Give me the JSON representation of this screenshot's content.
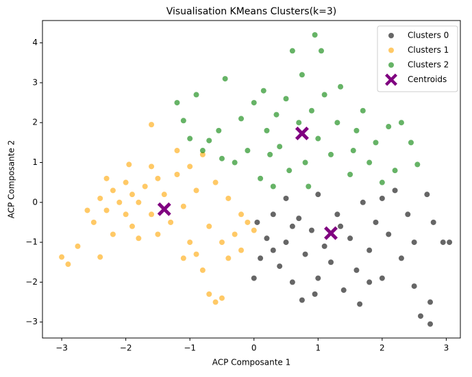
{
  "chart_data": {
    "type": "scatter",
    "title": "Visualisation KMeans Clusters(k=3)",
    "x_label": "ACP Composante 1",
    "y_label": "ACP Composante 2",
    "xlim": [
      -3.3,
      3.22
    ],
    "ylim": [
      -3.4,
      4.56
    ],
    "xticks": [
      {
        "value": -3,
        "label": "−3"
      },
      {
        "value": -2,
        "label": "−2"
      },
      {
        "value": -1,
        "label": "−1"
      },
      0,
      1,
      2,
      3
    ],
    "yticks": [
      {
        "value": -3,
        "label": "−3"
      },
      {
        "value": -2,
        "label": "−2"
      },
      {
        "value": -1,
        "label": "−1"
      },
      0,
      1,
      2,
      3,
      4
    ],
    "legend": "upper right",
    "series": [
      {
        "name": "Clusters 0",
        "color": "#000000",
        "alpha": 0.6,
        "marker": "o",
        "x": [
          0.0,
          0.05,
          0.1,
          0.2,
          0.3,
          0.4,
          0.5,
          0.5,
          0.6,
          0.7,
          0.75,
          0.8,
          0.9,
          0.95,
          1.0,
          1.1,
          1.2,
          1.3,
          1.4,
          1.5,
          1.6,
          1.65,
          1.7,
          1.8,
          1.9,
          2.0,
          2.1,
          2.2,
          2.3,
          2.4,
          2.5,
          2.5,
          2.6,
          2.7,
          2.75,
          2.75,
          2.8,
          2.95,
          3.05,
          1.35,
          0.3,
          0.6,
          1.0,
          2.0,
          1.8
        ],
        "y": [
          -1.9,
          -0.5,
          -1.4,
          -0.9,
          -0.3,
          -1.6,
          0.1,
          -1.0,
          -2.0,
          -0.4,
          -2.45,
          -1.3,
          -0.7,
          -2.3,
          0.2,
          -1.1,
          -1.5,
          -0.3,
          -2.2,
          -0.9,
          -1.7,
          -2.55,
          0.0,
          -1.2,
          -0.5,
          -1.9,
          -0.8,
          0.3,
          -1.4,
          -0.3,
          -2.1,
          -1.0,
          -2.85,
          0.2,
          -3.05,
          -2.5,
          -0.5,
          -1.0,
          -1.0,
          -0.6,
          -1.2,
          -0.6,
          -1.9,
          0.1,
          -2.0
        ]
      },
      {
        "name": "Clusters 1",
        "color": "#ffa500",
        "alpha": 0.6,
        "marker": "o",
        "x": [
          -3.0,
          -2.9,
          -2.75,
          -2.4,
          -2.5,
          -2.4,
          -2.3,
          -2.2,
          -2.1,
          -2.0,
          -2.0,
          -1.9,
          -1.9,
          -1.8,
          -1.8,
          -1.7,
          -1.6,
          -1.6,
          -1.5,
          -1.5,
          -1.4,
          -1.3,
          -1.2,
          -1.2,
          -1.1,
          -1.0,
          -1.0,
          -0.9,
          -0.9,
          -0.8,
          -0.8,
          -0.7,
          -0.7,
          -0.6,
          -0.6,
          -0.5,
          -0.5,
          -0.4,
          -0.4,
          -0.3,
          -0.2,
          -0.2,
          -0.1,
          0.0,
          -2.6,
          -2.2,
          -1.6,
          -2.3,
          -1.95,
          -1.1
        ],
        "y": [
          -1.37,
          -1.55,
          -1.1,
          -1.37,
          -0.5,
          0.1,
          -0.2,
          0.3,
          0.0,
          -0.3,
          0.5,
          0.2,
          -0.6,
          0.0,
          -0.9,
          0.4,
          -0.3,
          1.95,
          0.6,
          -0.8,
          0.2,
          -0.5,
          1.3,
          0.7,
          -0.1,
          -1.0,
          0.9,
          -1.3,
          0.3,
          -1.7,
          1.2,
          -0.6,
          -2.3,
          0.5,
          -2.5,
          -1.0,
          -2.4,
          0.1,
          -1.4,
          -0.8,
          -0.3,
          -1.2,
          -0.5,
          -0.7,
          -0.2,
          -0.8,
          0.9,
          0.6,
          0.95,
          -1.4
        ]
      },
      {
        "name": "Clusters 2",
        "color": "#008000",
        "alpha": 0.6,
        "marker": "o",
        "x": [
          -1.2,
          -1.1,
          -1.0,
          -0.9,
          -0.8,
          -0.7,
          -0.55,
          -0.5,
          -0.45,
          -0.3,
          -0.2,
          -0.1,
          0.0,
          0.1,
          0.15,
          0.2,
          0.3,
          0.35,
          0.4,
          0.5,
          0.55,
          0.6,
          0.7,
          0.75,
          0.8,
          0.85,
          0.9,
          0.95,
          1.0,
          1.05,
          1.1,
          1.2,
          1.3,
          1.35,
          1.5,
          1.6,
          1.7,
          1.8,
          1.9,
          2.0,
          2.1,
          2.2,
          2.3,
          2.45,
          2.55,
          0.25,
          1.55
        ],
        "y": [
          2.5,
          2.05,
          1.6,
          2.7,
          1.3,
          1.55,
          1.8,
          1.1,
          3.1,
          1.0,
          2.1,
          1.3,
          2.5,
          0.6,
          2.8,
          1.8,
          0.4,
          2.2,
          1.4,
          2.6,
          0.8,
          3.8,
          2.0,
          3.2,
          1.0,
          0.4,
          2.3,
          4.2,
          1.6,
          3.8,
          2.7,
          1.2,
          2.0,
          2.9,
          0.7,
          1.8,
          2.3,
          1.0,
          1.5,
          0.5,
          1.9,
          0.8,
          2.0,
          1.5,
          0.95,
          1.2,
          1.3
        ]
      },
      {
        "name": "Centroids",
        "color": "#800080",
        "alpha": 1,
        "marker": "X",
        "x": [
          -1.4,
          0.75,
          1.2
        ],
        "y": [
          -0.17,
          1.73,
          -0.77
        ]
      }
    ]
  }
}
